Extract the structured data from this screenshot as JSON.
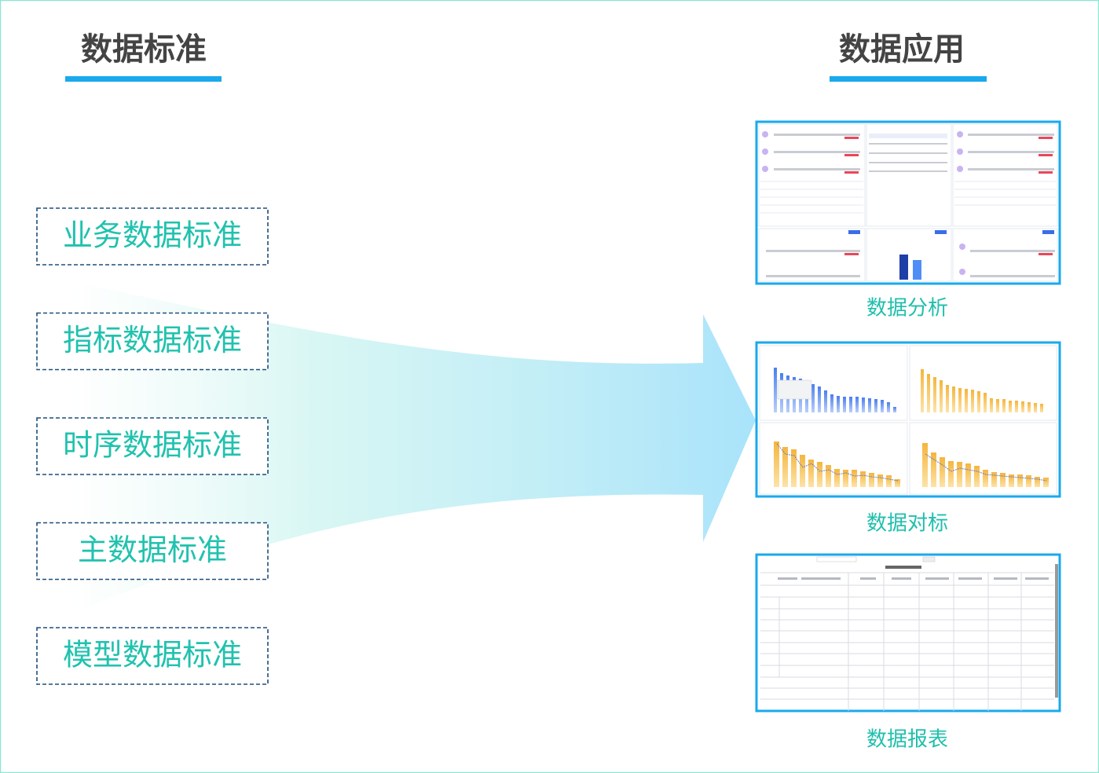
{
  "standards": {
    "title": "数据标准",
    "items": [
      "业务数据标准",
      "指标数据标准",
      "时序数据标准",
      "主数据标准",
      "模型数据标准"
    ]
  },
  "applications": {
    "title": "数据应用",
    "items": [
      "数据分析",
      "数据对标",
      "数据报表"
    ]
  }
}
